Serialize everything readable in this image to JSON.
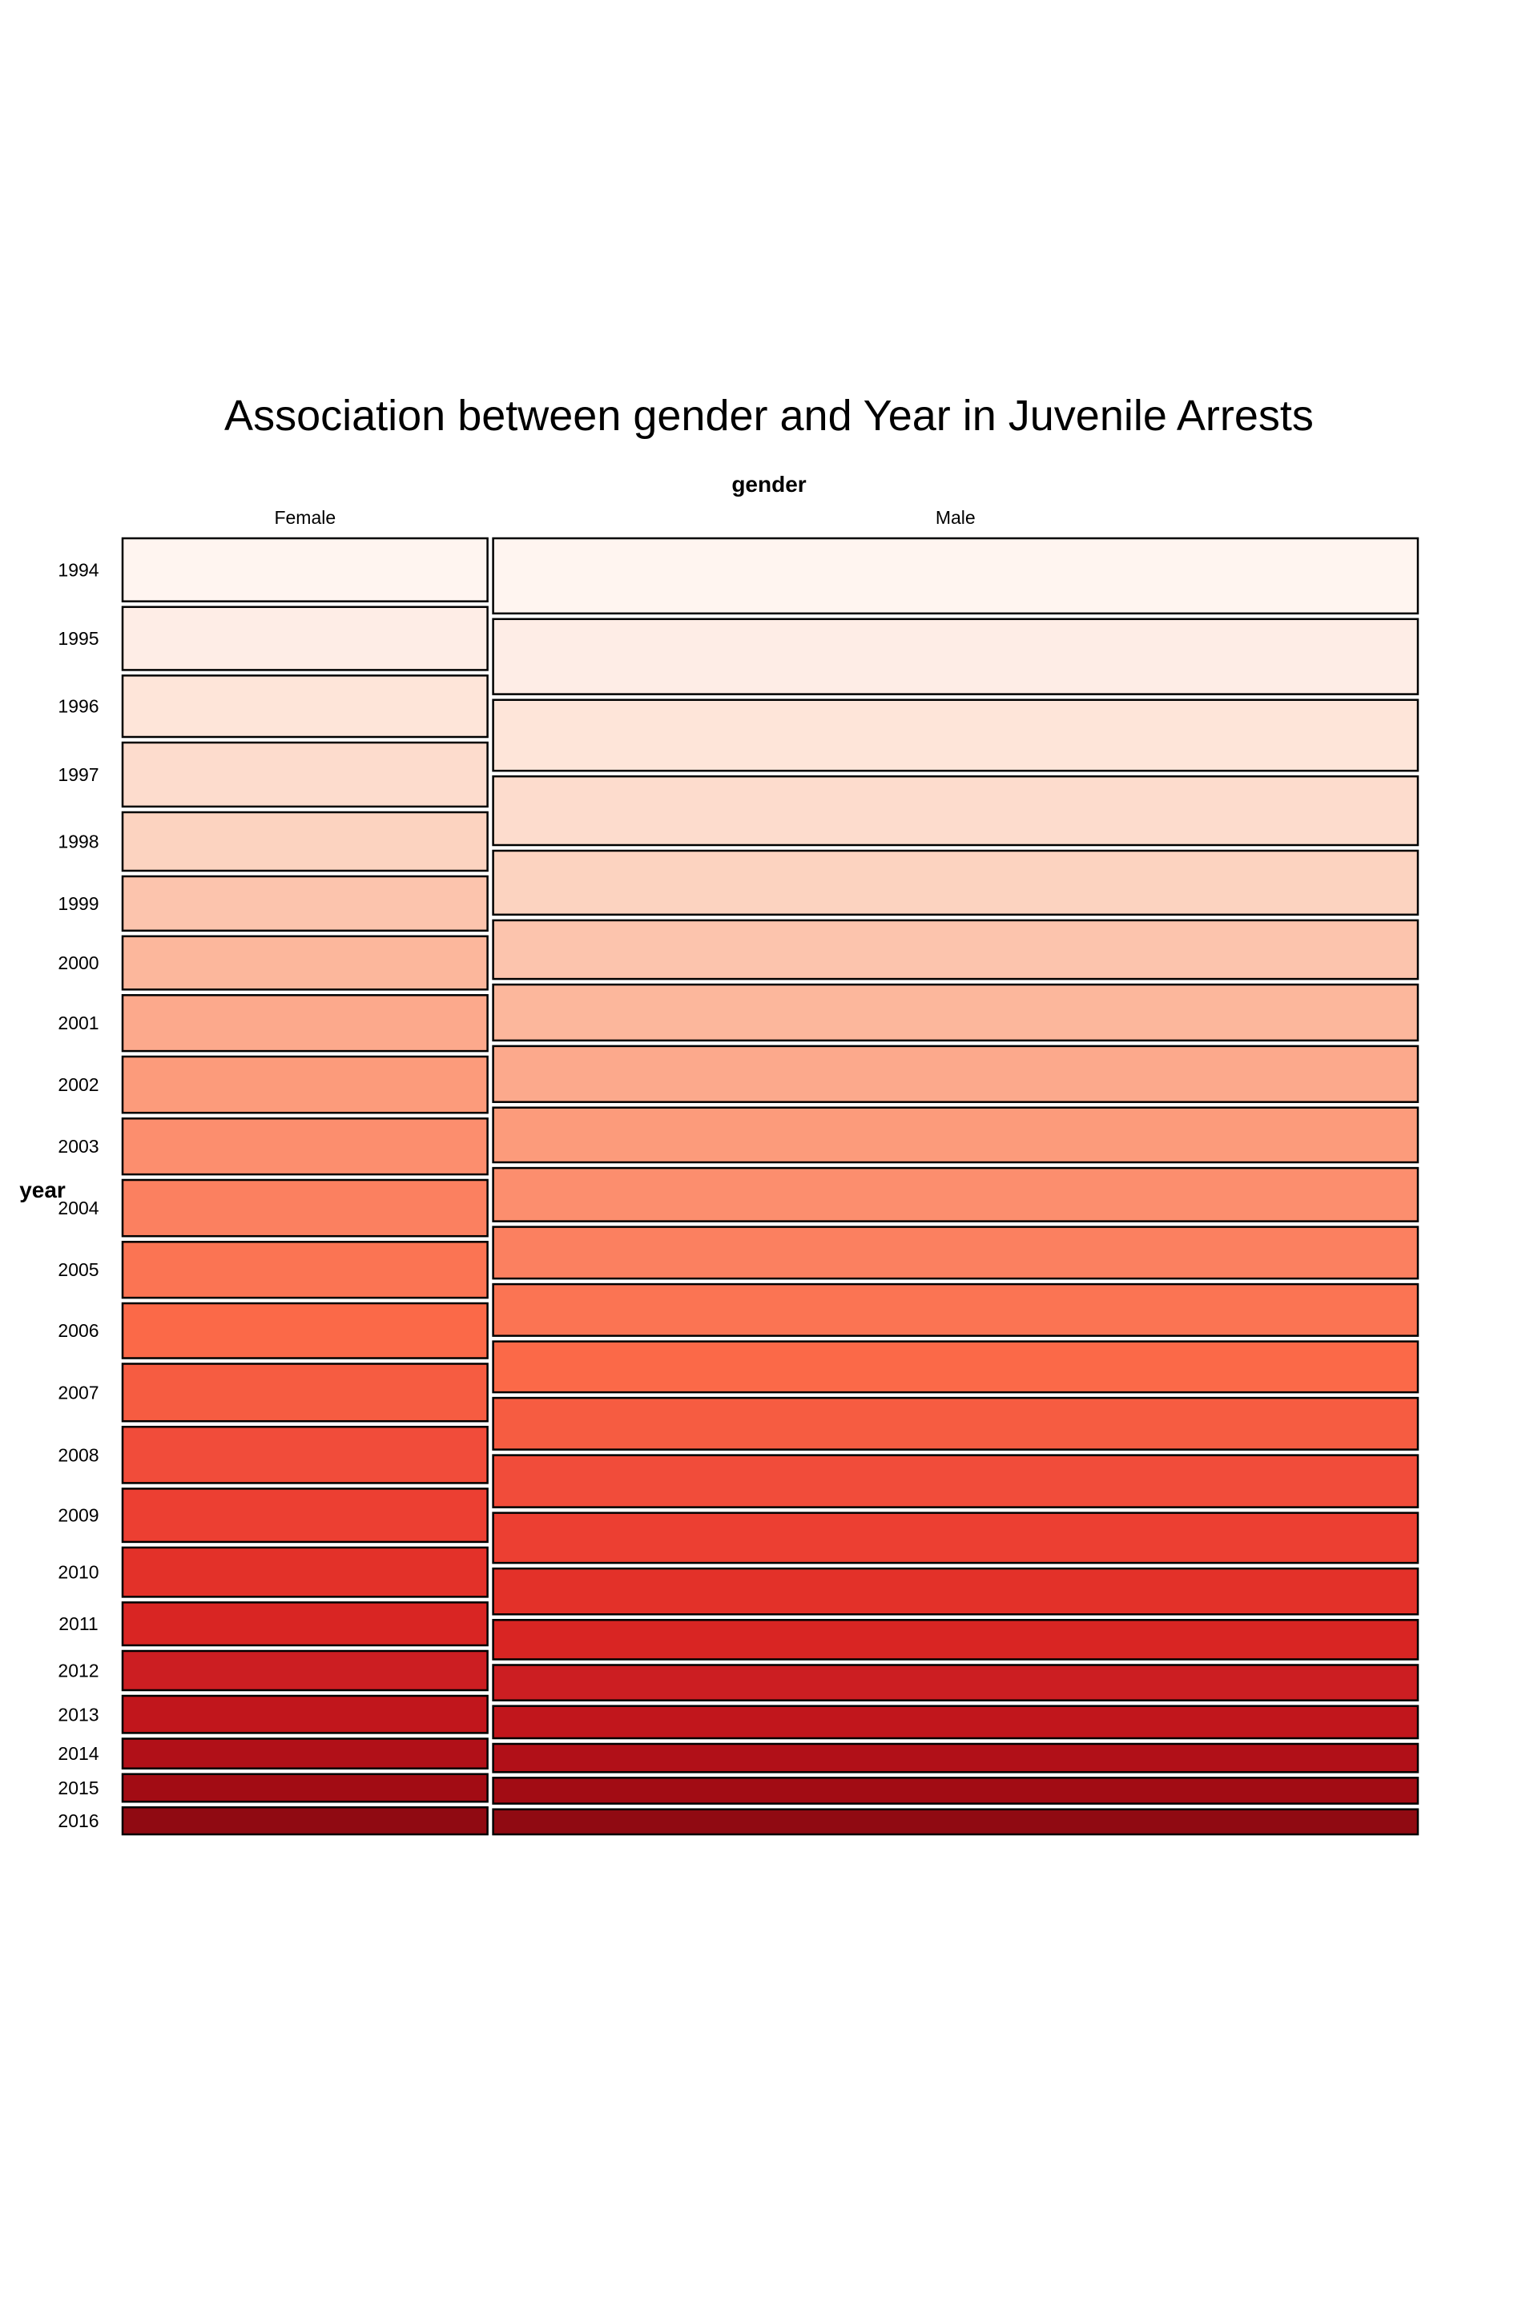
{
  "chart_data": {
    "type": "mosaic",
    "title": "Association between gender and Year in Juvenile Arrests",
    "column_variable": "gender",
    "row_variable": "year",
    "columns": [
      "Female",
      "Male"
    ],
    "rows": [
      "1994",
      "1995",
      "1996",
      "1997",
      "1998",
      "1999",
      "2000",
      "2001",
      "2002",
      "2003",
      "2004",
      "2005",
      "2006",
      "2007",
      "2008",
      "2009",
      "2010",
      "2011",
      "2012",
      "2013",
      "2014",
      "2015",
      "2016"
    ],
    "column_share": [
      0.283,
      0.717
    ],
    "cells": {
      "Female": [
        0.0486,
        0.0486,
        0.0474,
        0.0494,
        0.0451,
        0.0419,
        0.0411,
        0.0431,
        0.0434,
        0.0431,
        0.0434,
        0.0431,
        0.0423,
        0.0443,
        0.0434,
        0.0411,
        0.038,
        0.0331,
        0.0303,
        0.0287,
        0.023,
        0.0213,
        0.0209
      ],
      "Male": [
        0.0563,
        0.0563,
        0.0531,
        0.0515,
        0.0479,
        0.0439,
        0.0419,
        0.0419,
        0.041,
        0.0399,
        0.0387,
        0.0387,
        0.0381,
        0.0387,
        0.039,
        0.0375,
        0.0343,
        0.0295,
        0.0265,
        0.0242,
        0.0212,
        0.0194,
        0.0188
      ]
    },
    "fill_colors": [
      "#fff5f0",
      "#feede6",
      "#fee5d9",
      "#fddccd",
      "#fcd3c0",
      "#fcc4ad",
      "#fcb79c",
      "#fca98c",
      "#fc9b7b",
      "#fc8e6e",
      "#fb8060",
      "#fb7453",
      "#fb6948",
      "#f65c41",
      "#f14c3a",
      "#ec3f32",
      "#e33129",
      "#d92523",
      "#cc1e22",
      "#c1161c",
      "#b11018",
      "#a20c14",
      "#900a12"
    ],
    "grid": false,
    "legend": "none"
  }
}
